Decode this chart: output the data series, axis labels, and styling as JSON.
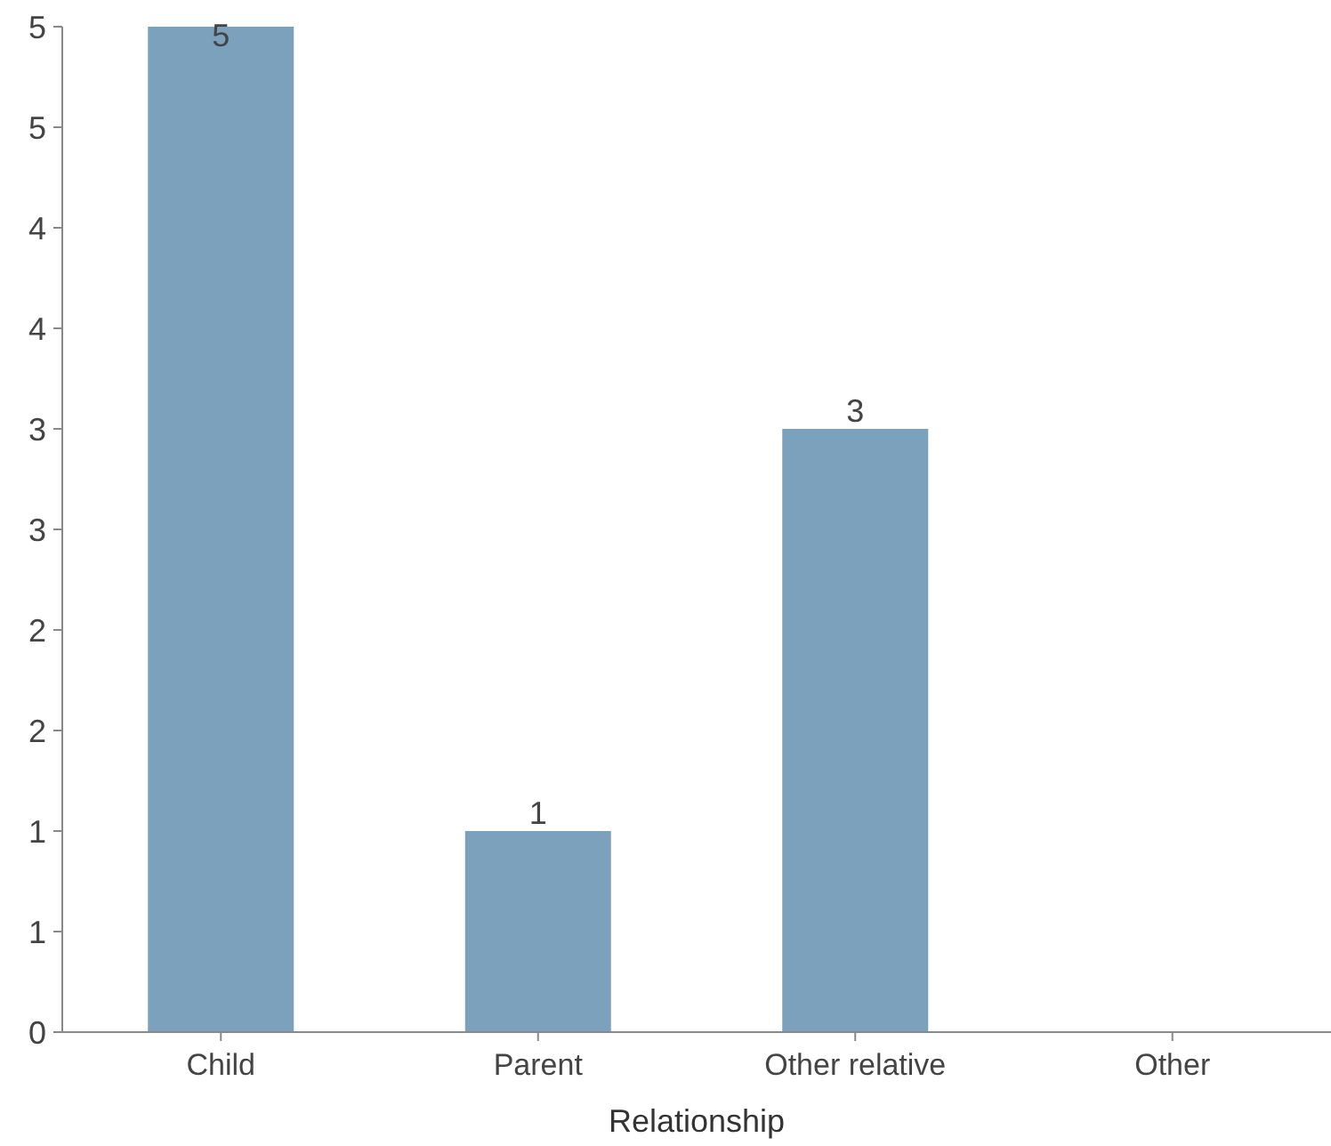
{
  "chart_data": {
    "type": "bar",
    "xlabel": "Relationship",
    "categories": [
      "Child",
      "Parent",
      "Other relative",
      "Other"
    ],
    "values": [
      5,
      1,
      3,
      0
    ],
    "value_labels": [
      "5",
      "1",
      "3",
      null
    ],
    "color": "#7ba1bc",
    "ylim": [
      0,
      5
    ],
    "yticks": [
      0,
      {
        "value": 0.5,
        "label": "1"
      },
      1,
      {
        "value": 1.5,
        "label": "2"
      },
      2,
      {
        "value": 2.5,
        "label": "3"
      },
      3,
      {
        "value": 3.5,
        "label": "4"
      },
      4,
      {
        "value": 4.5,
        "label": "5"
      },
      5
    ],
    "grid": false
  }
}
